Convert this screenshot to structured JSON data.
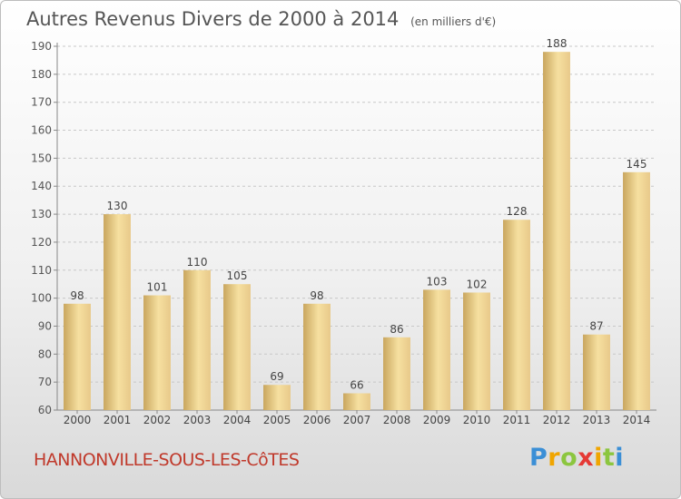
{
  "header": {
    "title": "Autres Revenus Divers de 2000 à 2014",
    "subtitle": "(en milliers d'€)"
  },
  "footer": {
    "town": "HANNONVILLE-SOUS-LES-CôTES",
    "brand_letters": [
      "P",
      "r",
      "o",
      "x",
      "i",
      "t",
      "i"
    ],
    "brand_colors": [
      "#3b8fd6",
      "#f0a500",
      "#8cc63f",
      "#e53935",
      "#f0a500",
      "#8cc63f",
      "#3b8fd6"
    ]
  },
  "chart_data": {
    "type": "bar",
    "categories": [
      "2000",
      "2001",
      "2002",
      "2003",
      "2004",
      "2005",
      "2006",
      "2007",
      "2008",
      "2009",
      "2010",
      "2011",
      "2012",
      "2013",
      "2014"
    ],
    "values": [
      98,
      130,
      101,
      110,
      105,
      69,
      98,
      66,
      86,
      103,
      102,
      128,
      188,
      87,
      145
    ],
    "ylim": [
      60,
      190
    ],
    "yticks": [
      60,
      70,
      80,
      90,
      100,
      110,
      120,
      130,
      140,
      150,
      160,
      170,
      180,
      190
    ],
    "grid": "horizontal-dashed",
    "bar_color_light": "#f6e0a0",
    "bar_color_dark": "#c9a65e"
  }
}
